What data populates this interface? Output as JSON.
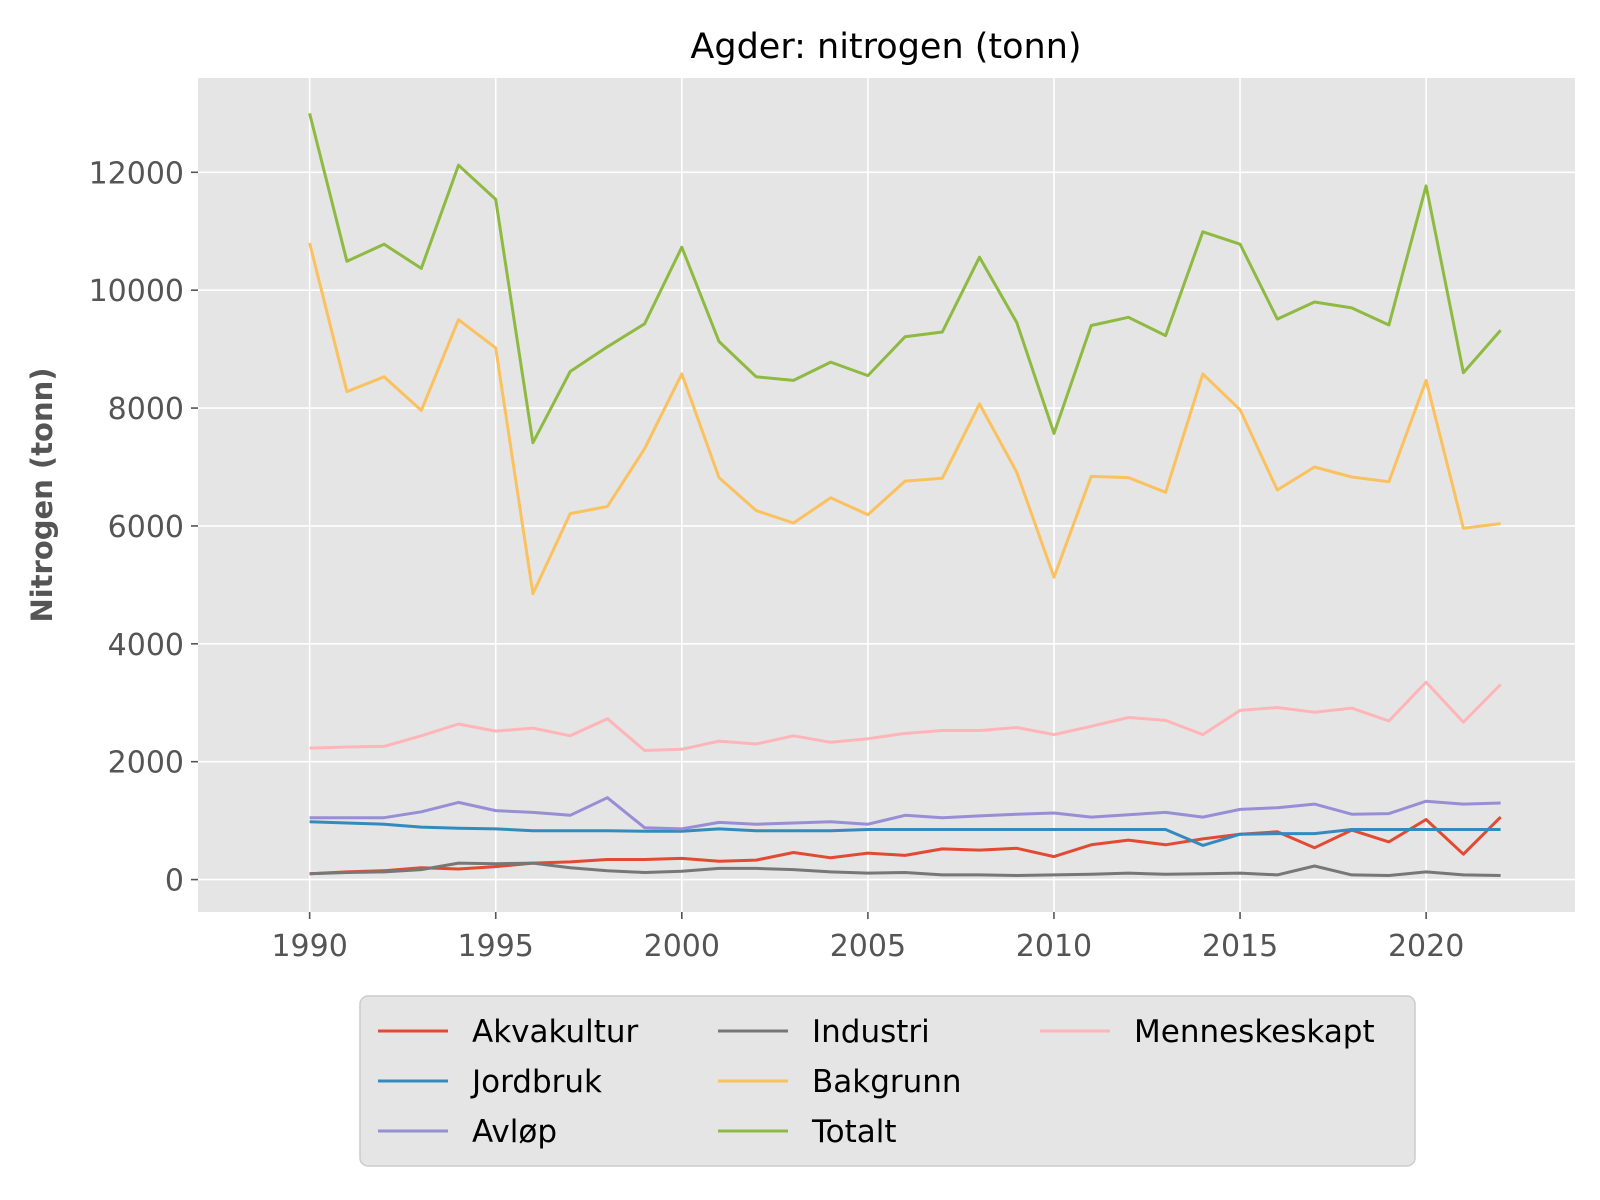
{
  "chart_data": {
    "type": "line",
    "title": "Agder: nitrogen (tonn)",
    "xlabel": "",
    "ylabel": "Nitrogen (tonn)",
    "xlim": [
      1987,
      2024
    ],
    "ylim": [
      -550,
      13600
    ],
    "xticks": [
      1990,
      1995,
      2000,
      2005,
      2010,
      2015,
      2020
    ],
    "yticks": [
      0,
      2000,
      4000,
      6000,
      8000,
      10000,
      12000
    ],
    "xticklabels": [
      "1990",
      "1995",
      "2000",
      "2005",
      "2010",
      "2015",
      "2020"
    ],
    "yticklabels": [
      "0",
      "2000",
      "4000",
      "6000",
      "8000",
      "10000",
      "12000"
    ],
    "grid": true,
    "legend_position": "bottom-center",
    "legend_columns": 3,
    "background": "#e5e5e5",
    "x": [
      1990,
      1991,
      1992,
      1993,
      1994,
      1995,
      1996,
      1997,
      1998,
      1999,
      2000,
      2001,
      2002,
      2003,
      2004,
      2005,
      2006,
      2007,
      2008,
      2009,
      2010,
      2011,
      2012,
      2013,
      2014,
      2015,
      2016,
      2017,
      2018,
      2019,
      2020,
      2021,
      2022
    ],
    "series": [
      {
        "name": "Akvakultur",
        "color": "#E24A33",
        "values": [
          100,
          130,
          150,
          200,
          180,
          220,
          280,
          300,
          340,
          340,
          360,
          310,
          330,
          460,
          370,
          450,
          410,
          520,
          500,
          530,
          390,
          590,
          670,
          590,
          690,
          770,
          810,
          540,
          840,
          640,
          1020,
          430,
          1060
        ]
      },
      {
        "name": "Jordbruk",
        "color": "#348ABD",
        "values": [
          980,
          960,
          940,
          890,
          870,
          860,
          830,
          830,
          830,
          820,
          820,
          860,
          830,
          830,
          830,
          850,
          850,
          850,
          850,
          850,
          850,
          850,
          850,
          850,
          580,
          770,
          780,
          780,
          850,
          850,
          850,
          850,
          850
        ]
      },
      {
        "name": "Avløp",
        "color": "#988ED5",
        "values": [
          1050,
          1050,
          1050,
          1150,
          1310,
          1170,
          1140,
          1090,
          1390,
          880,
          860,
          970,
          940,
          960,
          980,
          940,
          1090,
          1050,
          1080,
          1110,
          1130,
          1060,
          1100,
          1140,
          1060,
          1190,
          1220,
          1280,
          1110,
          1120,
          1330,
          1280,
          1300
        ]
      },
      {
        "name": "Industri",
        "color": "#777777",
        "values": [
          100,
          120,
          130,
          170,
          280,
          270,
          280,
          200,
          150,
          120,
          140,
          190,
          190,
          170,
          130,
          110,
          120,
          80,
          80,
          70,
          80,
          90,
          110,
          90,
          100,
          110,
          80,
          230,
          80,
          70,
          130,
          80,
          70
        ]
      },
      {
        "name": "Bakgrunn",
        "color": "#FBC15E",
        "values": [
          10800,
          8280,
          8530,
          7960,
          9500,
          9020,
          4850,
          6210,
          6330,
          7310,
          8580,
          6820,
          6260,
          6050,
          6480,
          6190,
          6760,
          6810,
          8070,
          6910,
          5130,
          6840,
          6820,
          6570,
          8580,
          7970,
          6610,
          7000,
          6830,
          6750,
          8470,
          5960,
          6040
        ]
      },
      {
        "name": "Totalt",
        "color": "#8EBA42",
        "values": [
          13000,
          10490,
          10780,
          10370,
          12120,
          11540,
          7410,
          8620,
          9040,
          9430,
          10730,
          9130,
          8530,
          8470,
          8780,
          8550,
          9210,
          9290,
          10560,
          9450,
          7570,
          9400,
          9540,
          9230,
          10990,
          10780,
          9510,
          9800,
          9700,
          9410,
          11770,
          8600,
          9320
        ]
      },
      {
        "name": "Menneskeskapt",
        "color": "#FFB5B8",
        "values": [
          2230,
          2250,
          2260,
          2440,
          2640,
          2520,
          2570,
          2440,
          2730,
          2190,
          2210,
          2350,
          2300,
          2440,
          2330,
          2390,
          2480,
          2530,
          2530,
          2580,
          2460,
          2600,
          2750,
          2700,
          2460,
          2870,
          2920,
          2840,
          2910,
          2690,
          3350,
          2670,
          3310
        ]
      }
    ]
  }
}
